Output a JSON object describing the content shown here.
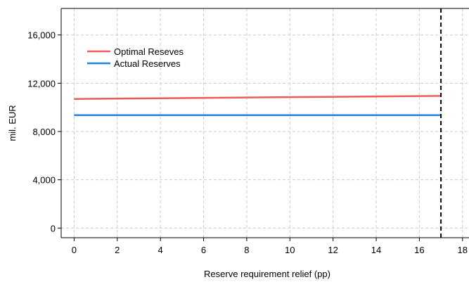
{
  "chart_data": {
    "type": "line",
    "title": "",
    "xlabel": "Reserve requirement relief (pp)",
    "ylabel": "mil. EUR",
    "xlim": [
      -0.6,
      18.3
    ],
    "ylim": [
      -800,
      18200
    ],
    "xticks": [
      0,
      2,
      4,
      6,
      8,
      10,
      12,
      14,
      16,
      18
    ],
    "yticks": [
      0,
      4000,
      8000,
      12000,
      16000
    ],
    "xtick_labels": [
      "0",
      "2",
      "4",
      "6",
      "8",
      "10",
      "12",
      "14",
      "16",
      "18"
    ],
    "ytick_labels": [
      "0",
      "4,000",
      "8,000",
      "12,000",
      "16,000"
    ],
    "grid": true,
    "legend_position": "top-left",
    "series": [
      {
        "name": "Optimal Reseves",
        "color": "#f05a5a",
        "x": [
          0,
          17
        ],
        "y": [
          10700,
          10950
        ]
      },
      {
        "name": "Actual Reserves",
        "color": "#1f82e6",
        "x": [
          0,
          17
        ],
        "y": [
          9350,
          9350
        ]
      }
    ],
    "vline": {
      "x": 17,
      "style": "dashed",
      "color": "#000000"
    }
  }
}
